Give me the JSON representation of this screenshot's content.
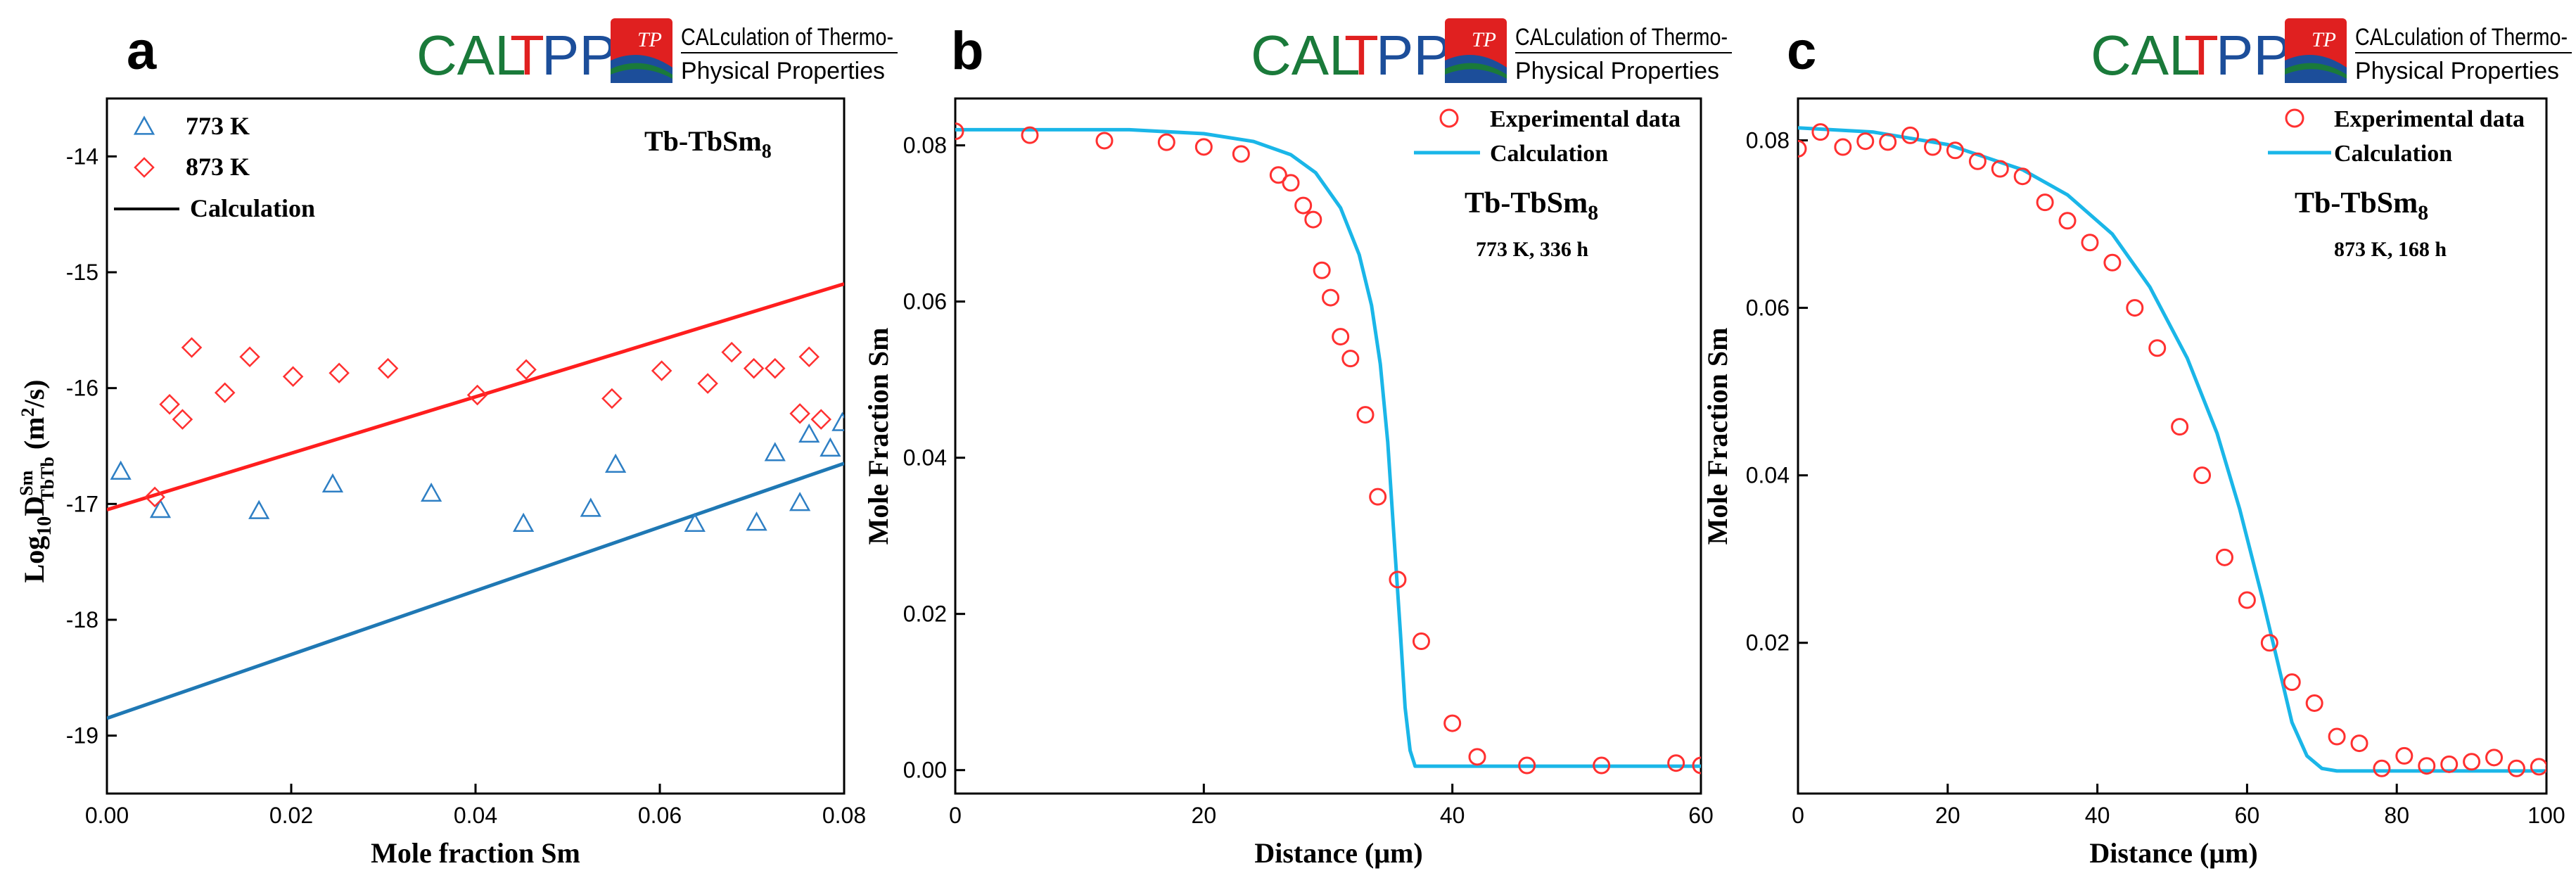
{
  "logo": {
    "cal": "CAL",
    "t": "T",
    "pp": "PP",
    "tp": "TP",
    "line1": "CALculation of Thermo-",
    "line2": "Physical Properties",
    "colors": {
      "green": "#1a7a3a",
      "red": "#e02020",
      "blue": "#1c4e9a"
    }
  },
  "colors": {
    "red_marker": "#ff3030",
    "blue_marker": "#2e7fc4",
    "red_line": "#ff1e1e",
    "blue_line": "#1f78b4",
    "cyan_line": "#1ab6e8"
  },
  "chart_data": [
    {
      "id": "a",
      "panel_label": "a",
      "type": "scatter",
      "title": "Tb-TbSm",
      "title_sub": "8",
      "xlabel": "Mole fraction Sm",
      "ylabel": "Log10 D Sm TbTb (m2/s)",
      "ylabel_parts": {
        "main": "Log",
        "sub10": "10",
        "d": "D",
        "sup": "Sm",
        "sub": "TbTb",
        "units": " (m",
        "units_sup": "2",
        "units_end": "/s)"
      },
      "xlim": [
        0,
        0.08
      ],
      "ylim": [
        -19.5,
        -13.5
      ],
      "xticks": [
        "0.00",
        "0.02",
        "0.04",
        "0.06",
        "0.08"
      ],
      "xtick_values": [
        0,
        0.02,
        0.04,
        0.06,
        0.08
      ],
      "yticks": [
        "-14",
        "-15",
        "-16",
        "-17",
        "-18",
        "-19"
      ],
      "ytick_values": [
        -14,
        -15,
        -16,
        -17,
        -18,
        -19
      ],
      "legend": [
        "773 K",
        "873 K",
        "Calculation"
      ],
      "series": [
        {
          "name": "773 K",
          "marker": "triangle",
          "x": [
            0.0015,
            0.0058,
            0.0165,
            0.0245,
            0.0352,
            0.0452,
            0.0525,
            0.0552,
            0.0638,
            0.0705,
            0.0725,
            0.0752,
            0.0762,
            0.0785,
            0.0798
          ],
          "y": [
            -16.72,
            -17.05,
            -17.06,
            -16.83,
            -16.91,
            -17.17,
            -17.04,
            -16.66,
            -17.17,
            -17.16,
            -16.56,
            -16.99,
            -16.4,
            -16.52,
            -16.3
          ]
        },
        {
          "name": "873 K",
          "marker": "diamond",
          "x": [
            0.0052,
            0.0068,
            0.0082,
            0.0092,
            0.0128,
            0.0155,
            0.0202,
            0.0252,
            0.0305,
            0.0402,
            0.0455,
            0.0548,
            0.0602,
            0.0652,
            0.0678,
            0.0702,
            0.0725,
            0.0752,
            0.0762,
            0.0775
          ],
          "y": [
            -16.94,
            -16.14,
            -16.27,
            -15.65,
            -16.04,
            -15.73,
            -15.9,
            -15.87,
            -15.83,
            -16.06,
            -15.84,
            -16.09,
            -15.85,
            -15.96,
            -15.69,
            -15.83,
            -15.83,
            -16.22,
            -15.73,
            -16.27
          ]
        }
      ],
      "lines": [
        {
          "name": "Calculation 773 K",
          "x": [
            0,
            0.08
          ],
          "y": [
            -18.85,
            -16.65
          ]
        },
        {
          "name": "Calculation 873 K",
          "x": [
            0,
            0.08
          ],
          "y": [
            -17.05,
            -15.1
          ]
        }
      ]
    },
    {
      "id": "b",
      "panel_label": "b",
      "type": "scatter",
      "title": "Tb-TbSm",
      "title_sub": "8",
      "condition": "773 K, 336 h",
      "xlabel": "Distance (μm)",
      "ylabel": "Mole Fraction Sm",
      "xlim": [
        0,
        60
      ],
      "ylim": [
        -0.003,
        0.086
      ],
      "xticks": [
        "0",
        "20",
        "40",
        "60"
      ],
      "xtick_values": [
        0,
        20,
        40,
        60
      ],
      "yticks": [
        "0.00",
        "0.02",
        "0.04",
        "0.06",
        "0.08"
      ],
      "ytick_values": [
        0,
        0.02,
        0.04,
        0.06,
        0.08
      ],
      "legend": [
        "Experimental data",
        "Calculation"
      ],
      "series": [
        {
          "name": "Experimental data",
          "marker": "circle",
          "x": [
            0,
            6,
            12,
            17,
            20,
            23,
            26,
            27,
            28,
            28.8,
            29.5,
            30.2,
            31,
            31.8,
            33,
            34,
            35.6,
            37.5,
            40,
            42,
            46,
            52,
            58,
            60
          ],
          "y": [
            0.0818,
            0.0813,
            0.0806,
            0.0804,
            0.0798,
            0.0789,
            0.0762,
            0.0752,
            0.0723,
            0.0705,
            0.064,
            0.0605,
            0.0555,
            0.0527,
            0.0455,
            0.035,
            0.0244,
            0.0165,
            0.006,
            0.0017,
            0.0006,
            0.0006,
            0.0009,
            0.0006
          ]
        }
      ],
      "curve": {
        "name": "Calculation",
        "x": [
          0,
          14,
          20,
          24,
          27,
          29,
          31,
          32.5,
          33.5,
          34.2,
          34.8,
          35.3,
          35.8,
          36.2,
          36.6,
          37,
          40,
          50,
          60
        ],
        "y": [
          0.082,
          0.082,
          0.0815,
          0.0805,
          0.0788,
          0.0765,
          0.072,
          0.066,
          0.0595,
          0.052,
          0.042,
          0.03,
          0.018,
          0.008,
          0.0025,
          0.0005,
          0.0005,
          0.0005,
          0.0005
        ]
      }
    },
    {
      "id": "c",
      "panel_label": "c",
      "type": "scatter",
      "title": "Tb-TbSm",
      "title_sub": "8",
      "condition": "873 K, 168 h",
      "xlabel": "Distance (μm)",
      "ylabel": "Mole Fraction Sm",
      "xlim": [
        0,
        100
      ],
      "ylim": [
        0.002,
        0.085
      ],
      "xticks": [
        "0",
        "20",
        "40",
        "60",
        "80",
        "100"
      ],
      "xtick_values": [
        0,
        20,
        40,
        60,
        80,
        100
      ],
      "yticks": [
        "0.02",
        "0.04",
        "0.06",
        "0.08"
      ],
      "ytick_values": [
        0.02,
        0.04,
        0.06,
        0.08
      ],
      "legend": [
        "Experimental data",
        "Calculation"
      ],
      "series": [
        {
          "name": "Experimental data",
          "marker": "circle",
          "x": [
            0,
            3,
            6,
            9,
            12,
            15,
            18,
            21,
            24,
            27,
            30,
            33,
            36,
            39,
            42,
            45,
            48,
            51,
            54,
            57,
            60,
            63,
            66,
            69,
            72,
            75,
            78,
            81,
            84,
            87,
            90,
            93,
            96,
            99
          ],
          "y": [
            0.079,
            0.081,
            0.0792,
            0.0799,
            0.0798,
            0.0806,
            0.0792,
            0.0788,
            0.0775,
            0.0766,
            0.0757,
            0.0726,
            0.0704,
            0.0678,
            0.0654,
            0.06,
            0.0552,
            0.0458,
            0.04,
            0.0302,
            0.0251,
            0.02,
            0.0153,
            0.0128,
            0.0088,
            0.008,
            0.005,
            0.0065,
            0.0053,
            0.0055,
            0.0058,
            0.0063,
            0.005,
            0.0052
          ]
        }
      ],
      "curve": {
        "name": "Calculation",
        "x": [
          0,
          10,
          20,
          30,
          36,
          42,
          47,
          52,
          56,
          59,
          62,
          64,
          66,
          68,
          70,
          72,
          80,
          100
        ],
        "y": [
          0.0815,
          0.081,
          0.0795,
          0.0765,
          0.0735,
          0.0688,
          0.0625,
          0.054,
          0.045,
          0.036,
          0.0255,
          0.018,
          0.0105,
          0.0065,
          0.005,
          0.0047,
          0.0047,
          0.0047
        ]
      }
    }
  ]
}
